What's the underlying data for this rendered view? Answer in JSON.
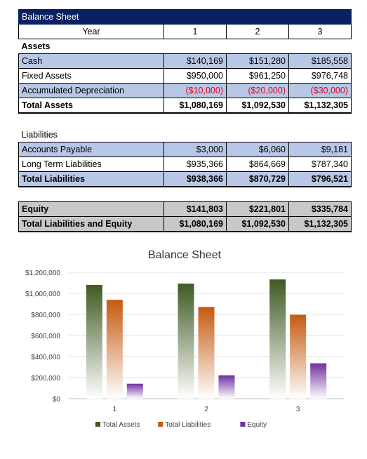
{
  "sheet": {
    "title": "Balance Sheet",
    "year_label": "Year",
    "years": [
      "1",
      "2",
      "3"
    ],
    "assets_heading": "Assets",
    "assets_rows": [
      {
        "label": "Cash",
        "values": [
          "$140,169",
          "$151,280",
          "$185,558"
        ]
      },
      {
        "label": "Fixed Assets",
        "values": [
          "$950,000",
          "$961,250",
          "$976,748"
        ]
      },
      {
        "label": "Accumulated Depreciation",
        "values": [
          "($10,000)",
          "($20,000)",
          "($30,000)"
        ]
      }
    ],
    "total_assets": {
      "label": "Total Assets",
      "values": [
        "$1,080,169",
        "$1,092,530",
        "$1,132,305"
      ]
    },
    "liabilities_heading": "Liabilities",
    "liabilities_rows": [
      {
        "label": "Accounts Payable",
        "values": [
          "$3,000",
          "$6,060",
          "$9,181"
        ]
      },
      {
        "label": "Long Term Liabilities",
        "values": [
          "$935,366",
          "$864,669",
          "$787,340"
        ]
      }
    ],
    "total_liabilities": {
      "label": "Total Liabilities",
      "values": [
        "$938,366",
        "$870,729",
        "$796,521"
      ]
    },
    "equity": {
      "label": "Equity",
      "values": [
        "$141,803",
        "$221,801",
        "$335,784"
      ]
    },
    "total_liab_equity": {
      "label": "Total Liabilities and Equity",
      "values": [
        "$1,080,169",
        "$1,092,530",
        "$1,132,305"
      ]
    }
  },
  "chart_data": {
    "type": "bar",
    "title": "Balance Sheet",
    "categories": [
      "1",
      "2",
      "3"
    ],
    "series": [
      {
        "name": "Total Assets",
        "values": [
          1080169,
          1092530,
          1132305
        ],
        "color": "#3f5a23"
      },
      {
        "name": "Total Liabilities",
        "values": [
          938366,
          870729,
          796521
        ],
        "color": "#c55a11"
      },
      {
        "name": "Equity",
        "values": [
          141803,
          221801,
          335784
        ],
        "color": "#7030a0"
      }
    ],
    "ylim": [
      0,
      1200000
    ],
    "yticks": [
      0,
      200000,
      400000,
      600000,
      800000,
      1000000,
      1200000
    ],
    "ytick_labels": [
      "$0",
      "$200,000",
      "$400,000",
      "$600,000",
      "$800,000",
      "$1,000,000",
      "$1,200,000"
    ],
    "grid": true,
    "legend": "bottom",
    "xlabel": "",
    "ylabel": ""
  }
}
